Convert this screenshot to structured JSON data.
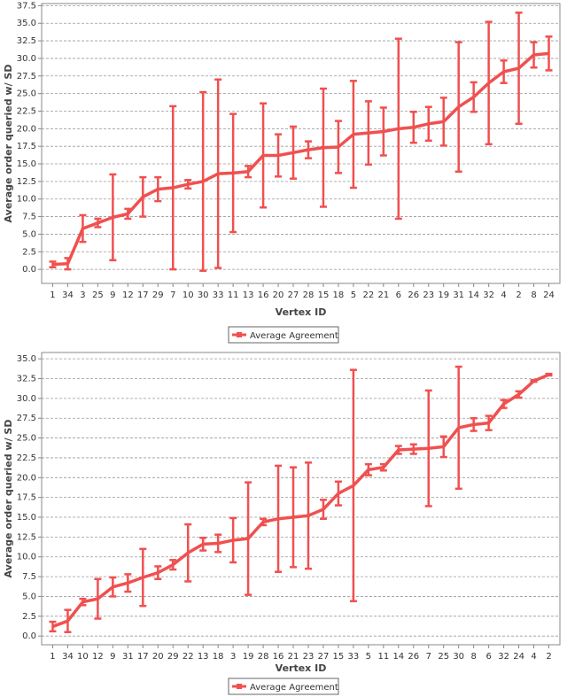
{
  "chart_data": [
    {
      "type": "line",
      "x_label": "Vertex ID",
      "y_label": "Average order queried w/ SD",
      "categories": [
        "1",
        "34",
        "3",
        "25",
        "9",
        "12",
        "17",
        "29",
        "7",
        "10",
        "30",
        "33",
        "11",
        "13",
        "16",
        "20",
        "27",
        "28",
        "15",
        "18",
        "5",
        "22",
        "21",
        "6",
        "26",
        "23",
        "19",
        "31",
        "14",
        "32",
        "4",
        "2",
        "8",
        "24"
      ],
      "series": [
        {
          "name": "Average Agreement",
          "color": "#f05050",
          "values": [
            0.7,
            0.8,
            5.8,
            6.6,
            7.4,
            7.9,
            10.3,
            11.4,
            11.6,
            12.1,
            12.5,
            13.6,
            13.7,
            13.9,
            16.2,
            16.2,
            16.6,
            17.0,
            17.3,
            17.4,
            19.2,
            19.4,
            19.6,
            20.0,
            20.2,
            20.7,
            21.0,
            23.1,
            24.5,
            26.5,
            28.1,
            28.6,
            30.5,
            30.7
          ],
          "errors": [
            0.4,
            0.8,
            1.9,
            0.6,
            6.1,
            0.7,
            2.8,
            1.7,
            11.6,
            0.6,
            12.7,
            13.4,
            8.4,
            0.8,
            7.4,
            3.0,
            3.7,
            1.2,
            8.4,
            3.7,
            7.6,
            4.5,
            3.4,
            12.8,
            2.2,
            2.4,
            3.4,
            9.2,
            2.1,
            8.7,
            1.6,
            7.9,
            1.8,
            2.4
          ]
        }
      ],
      "ylim": [
        -2,
        37.8
      ],
      "yticks": [
        {
          "value": 0,
          "label": "0.0"
        },
        2.5,
        {
          "value": 5,
          "label": "5.0"
        },
        7.5,
        {
          "value": 10,
          "label": "10.0"
        },
        12.5,
        {
          "value": 15,
          "label": "15.0"
        },
        17.5,
        {
          "value": 20,
          "label": "20.0"
        },
        22.5,
        {
          "value": 25,
          "label": "25.0"
        },
        27.5,
        {
          "value": 30,
          "label": "30.0"
        },
        32.5,
        {
          "value": 35,
          "label": "35.0"
        },
        37.5
      ],
      "grid": true
    },
    {
      "type": "line",
      "x_label": "Vertex ID",
      "y_label": "Average order queried w/ SD",
      "categories": [
        "1",
        "34",
        "10",
        "12",
        "9",
        "31",
        "17",
        "20",
        "29",
        "22",
        "13",
        "18",
        "3",
        "19",
        "28",
        "16",
        "21",
        "23",
        "27",
        "15",
        "33",
        "5",
        "11",
        "14",
        "26",
        "7",
        "25",
        "30",
        "8",
        "6",
        "32",
        "24",
        "4",
        "2"
      ],
      "series": [
        {
          "name": "Average Agreement",
          "color": "#f05050",
          "values": [
            1.2,
            1.9,
            4.3,
            4.7,
            6.2,
            6.7,
            7.4,
            8.0,
            9.0,
            10.5,
            11.6,
            11.7,
            12.1,
            12.3,
            14.4,
            14.8,
            15.0,
            15.2,
            16.0,
            18.0,
            19.0,
            21.0,
            21.3,
            23.5,
            23.6,
            23.7,
            23.9,
            26.3,
            26.7,
            26.9,
            29.3,
            30.5,
            32.2,
            33.0
          ],
          "errors": [
            0.6,
            1.4,
            0.4,
            2.5,
            1.2,
            1.1,
            3.6,
            0.8,
            0.6,
            3.6,
            0.8,
            1.1,
            2.8,
            7.1,
            0.4,
            6.7,
            6.3,
            6.7,
            1.2,
            1.5,
            14.6,
            0.7,
            0.4,
            0.5,
            0.6,
            7.3,
            1.3,
            7.7,
            0.8,
            0.9,
            0.5,
            0.4,
            0.1,
            0.1
          ]
        }
      ],
      "ylim": [
        -1.1,
        35.8
      ],
      "yticks": [
        {
          "value": 0,
          "label": "0.0"
        },
        2.5,
        {
          "value": 5,
          "label": "5.0"
        },
        7.5,
        {
          "value": 10,
          "label": "10.0"
        },
        12.5,
        {
          "value": 15,
          "label": "15.0"
        },
        17.5,
        {
          "value": 20,
          "label": "20.0"
        },
        22.5,
        {
          "value": 25,
          "label": "25.0"
        },
        27.5,
        {
          "value": 30,
          "label": "30.0"
        },
        32.5,
        {
          "value": 35,
          "label": "35.0"
        }
      ],
      "grid": true
    }
  ]
}
